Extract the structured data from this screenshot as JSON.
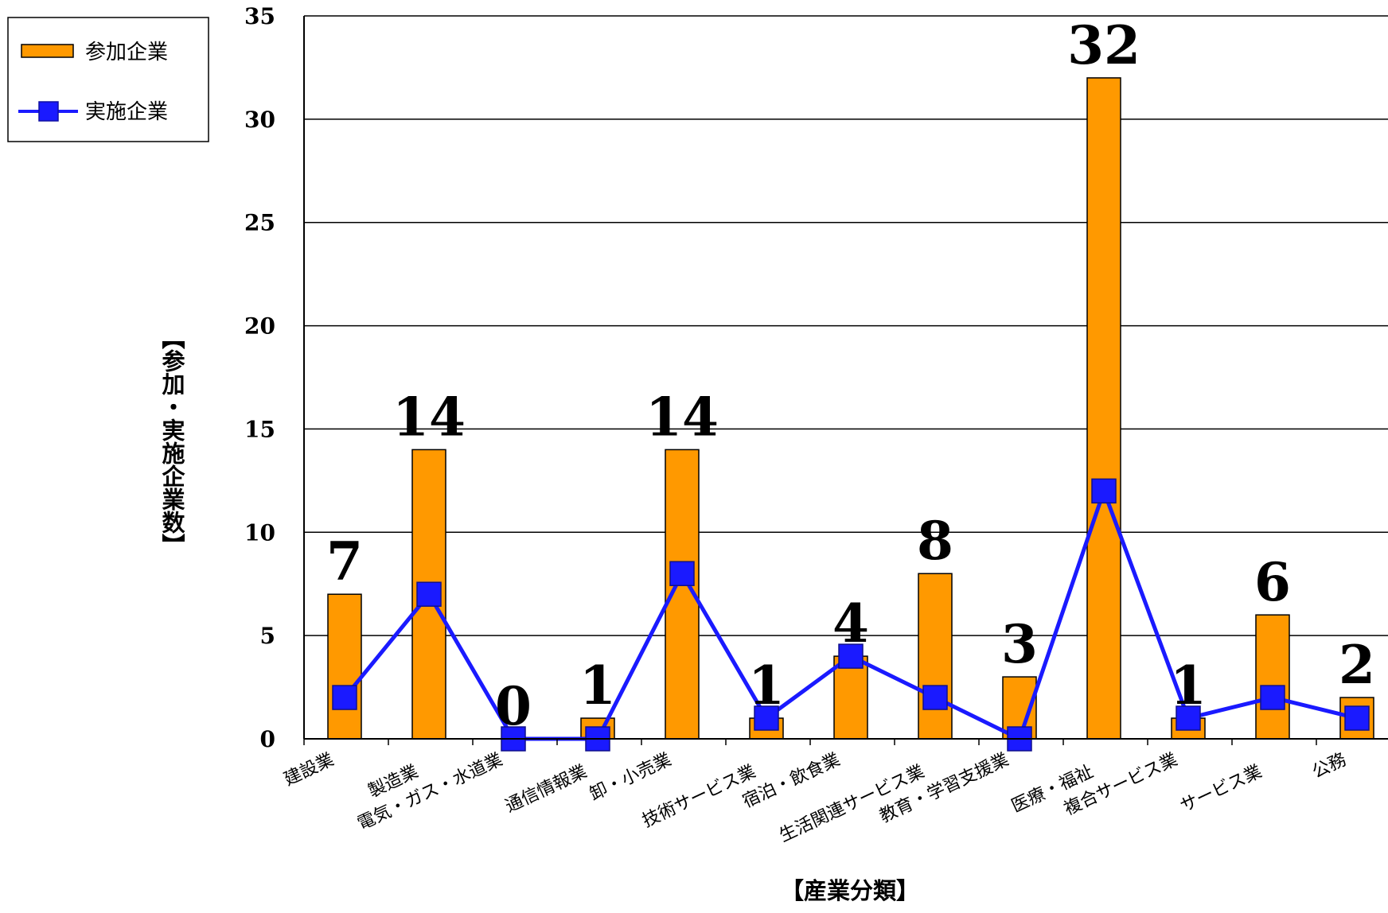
{
  "chart_data": {
    "type": "bar",
    "title": "",
    "xlabel": "【産業分類】",
    "ylabel": "【参加・実施企業数】",
    "ylim": [
      0,
      35
    ],
    "yticks": [
      0,
      5,
      10,
      15,
      20,
      25,
      30,
      35
    ],
    "grid": true,
    "legend_position": "top-left",
    "categories": [
      "建設業",
      "製造業",
      "電気・ガス・水道業",
      "通信情報業",
      "卸・小売業",
      "技術サービス業",
      "宿泊・飲食業",
      "生活関連サービス業",
      "教育・学習支援業",
      "医療・福祉",
      "複合サービス業",
      "サービス業",
      "公務"
    ],
    "series": [
      {
        "name": "参加企業",
        "type": "bar",
        "color": "#FF9900",
        "values": [
          7,
          14,
          0,
          1,
          14,
          1,
          4,
          8,
          3,
          32,
          1,
          6,
          2
        ],
        "data_labels": [
          "7",
          "14",
          "0",
          "1",
          "14",
          "1",
          "4",
          "8",
          "3",
          "32",
          "1",
          "6",
          "2"
        ]
      },
      {
        "name": "実施企業",
        "type": "line",
        "marker": "square",
        "color": "#1A1AFF",
        "values": [
          2,
          7,
          0,
          0,
          8,
          1,
          4,
          2,
          0,
          12,
          1,
          2,
          1
        ]
      }
    ]
  }
}
